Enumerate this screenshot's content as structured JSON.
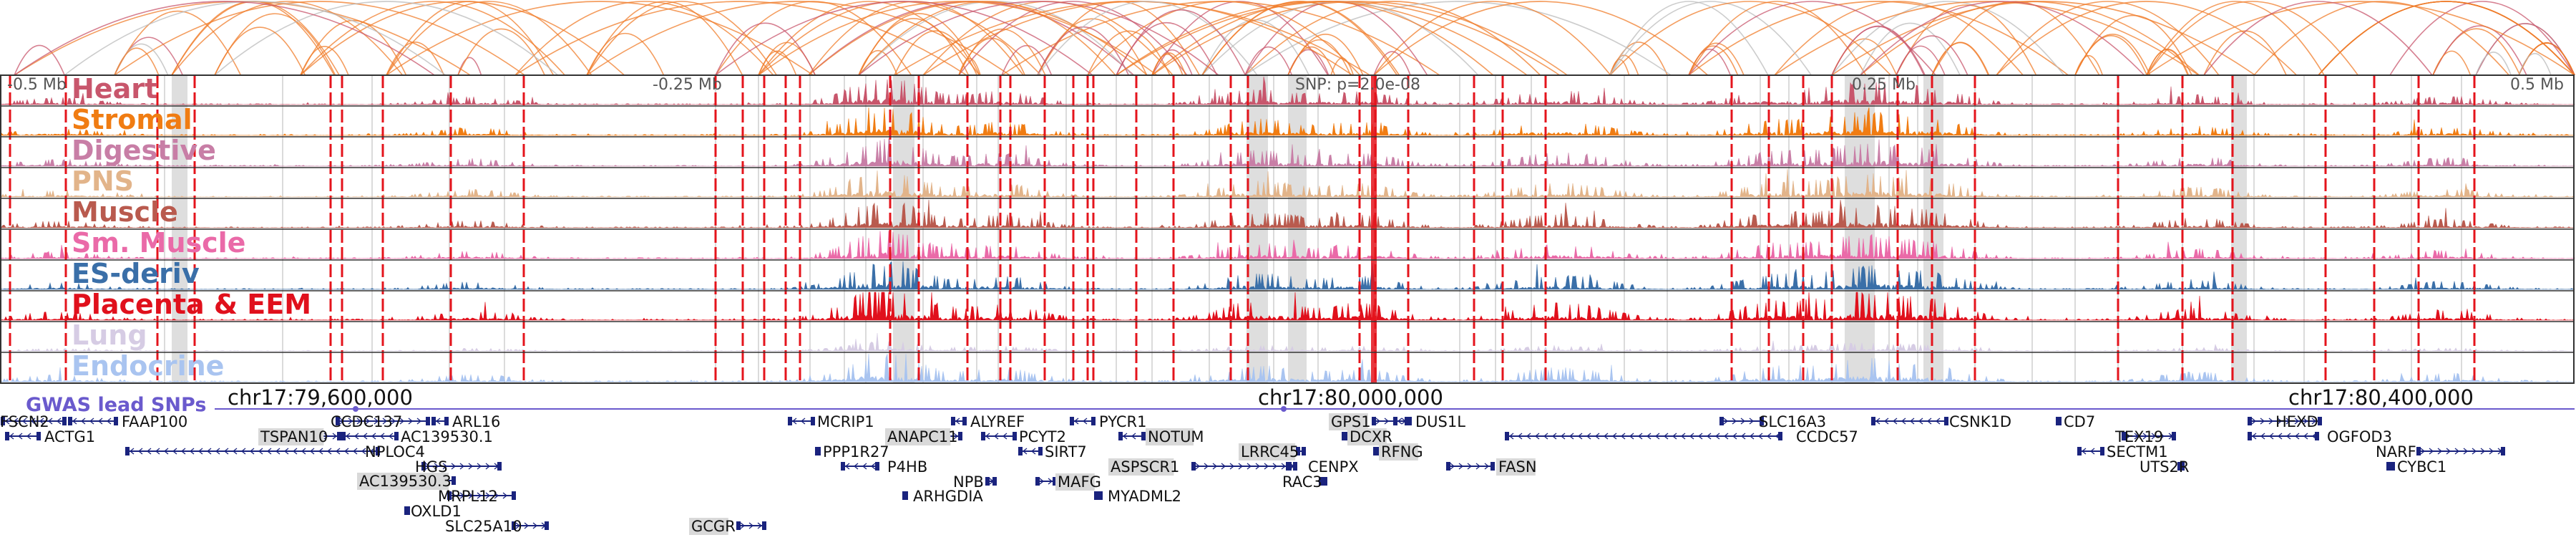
{
  "axis": {
    "ticks": [
      {
        "label": "-0.5 Mb",
        "offset_mb": -0.5
      },
      {
        "label": "-0.25 Mb",
        "offset_mb": -0.25
      },
      {
        "label": "0.25 Mb",
        "offset_mb": 0.25
      },
      {
        "label": "0.5 Mb",
        "offset_mb": 0.5
      }
    ],
    "snp_label": "SNP: p=2.0e-08"
  },
  "tracks": [
    {
      "label": "Heart",
      "color": "#c8566c"
    },
    {
      "label": "Stromal",
      "color": "#f07c12"
    },
    {
      "label": "Digestive",
      "color": "#c87ea6"
    },
    {
      "label": "PNS",
      "color": "#e2b48a"
    },
    {
      "label": "Muscle",
      "color": "#b95a4e"
    },
    {
      "label": "Sm. Muscle",
      "color": "#ea6aa8"
    },
    {
      "label": "ES-deriv",
      "color": "#3a6fa8"
    },
    {
      "label": "Placenta & EEM",
      "color": "#e0101c"
    },
    {
      "label": "Lung",
      "color": "#d6cce4"
    },
    {
      "label": "Endocrine",
      "color": "#a9c4f0"
    }
  ],
  "gwas": {
    "label": "GWAS lead SNPs",
    "color": "#6a5acd"
  },
  "chrom_labels": [
    {
      "label": "chr17:79,600,000",
      "pos_mb": 79.6
    },
    {
      "label": "chr17:80,000,000",
      "pos_mb": 80.0
    },
    {
      "label": "chr17:80,400,000",
      "pos_mb": 80.4
    }
  ],
  "genes": [
    {
      "name": "FSCN2",
      "highlight": false
    },
    {
      "name": "ACTG1",
      "highlight": false
    },
    {
      "name": "FAAP100",
      "highlight": false
    },
    {
      "name": "CCDC137",
      "highlight": false
    },
    {
      "name": "ARL16",
      "highlight": false
    },
    {
      "name": "TSPAN10",
      "highlight": true
    },
    {
      "name": "AC139530.1",
      "highlight": false
    },
    {
      "name": "NPLOC4",
      "highlight": false
    },
    {
      "name": "HGS",
      "highlight": false
    },
    {
      "name": "AC139530.3",
      "highlight": true
    },
    {
      "name": "MRPL12",
      "highlight": false
    },
    {
      "name": "OXLD1",
      "highlight": false
    },
    {
      "name": "SLC25A10",
      "highlight": false
    },
    {
      "name": "GCGR",
      "highlight": true
    },
    {
      "name": "MCRIP1",
      "highlight": false
    },
    {
      "name": "PPP1R27",
      "highlight": false
    },
    {
      "name": "P4HB",
      "highlight": false
    },
    {
      "name": "ALYREF",
      "highlight": false
    },
    {
      "name": "ANAPC11",
      "highlight": true
    },
    {
      "name": "PCYT2",
      "highlight": false
    },
    {
      "name": "SIRT7",
      "highlight": false
    },
    {
      "name": "NPB",
      "highlight": false
    },
    {
      "name": "ARHGDIA",
      "highlight": false
    },
    {
      "name": "MAFG",
      "highlight": true
    },
    {
      "name": "PYCR1",
      "highlight": false
    },
    {
      "name": "NOTUM",
      "highlight": true
    },
    {
      "name": "ASPSCR1",
      "highlight": true
    },
    {
      "name": "MYADML2",
      "highlight": false
    },
    {
      "name": "LRRC45",
      "highlight": true
    },
    {
      "name": "CENPX",
      "highlight": false
    },
    {
      "name": "RAC3",
      "highlight": false
    },
    {
      "name": "GPS1",
      "highlight": true
    },
    {
      "name": "DUS1L",
      "highlight": false
    },
    {
      "name": "DCXR",
      "highlight": true
    },
    {
      "name": "RFNG",
      "highlight": true
    },
    {
      "name": "FASN",
      "highlight": true
    },
    {
      "name": "SLC16A3",
      "highlight": false
    },
    {
      "name": "CSNK1D",
      "highlight": false
    },
    {
      "name": "CCDC57",
      "highlight": false
    },
    {
      "name": "CD7",
      "highlight": false
    },
    {
      "name": "TEX19",
      "highlight": false
    },
    {
      "name": "SECTM1",
      "highlight": false
    },
    {
      "name": "UTS2R",
      "highlight": false
    },
    {
      "name": "HEXD",
      "highlight": false
    },
    {
      "name": "OGFOD3",
      "highlight": false
    },
    {
      "name": "NARF",
      "highlight": false
    },
    {
      "name": "CYBC1",
      "highlight": false
    }
  ]
}
